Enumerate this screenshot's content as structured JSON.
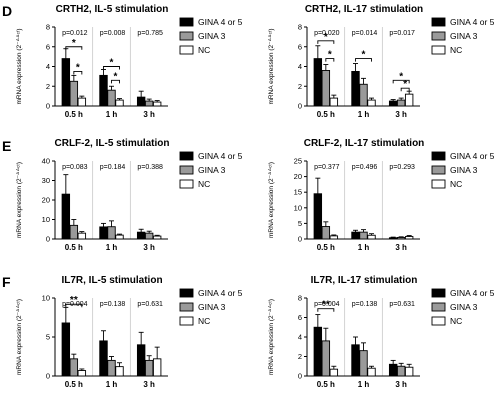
{
  "row_labels": [
    "D",
    "E",
    "F"
  ],
  "legend_entries": [
    "GINA 4 or 5",
    "GINA 3",
    "NC"
  ],
  "series_colors": [
    "#000000",
    "#9a9a9a",
    "#ffffff"
  ],
  "y_axis_label": "mRNA expression (2⁻ᐞᐞᶜᵗ)",
  "chart_data": [
    {
      "type": "bar",
      "title": "CRTH2, IL-5 stimulation",
      "categories": [
        "0.5 h",
        "1 h",
        "3 h"
      ],
      "pvalues": [
        "p=0.012",
        "p=0.008",
        "p=0.785"
      ],
      "ylim": [
        0,
        8
      ],
      "yticks": [
        0,
        2,
        4,
        6,
        8
      ],
      "series": [
        {
          "name": "GINA 4 or 5",
          "values": [
            4.8,
            3.1,
            0.9
          ],
          "errors": [
            1.0,
            0.6,
            0.6
          ]
        },
        {
          "name": "GINA 3",
          "values": [
            2.5,
            1.6,
            0.5
          ],
          "errors": [
            0.6,
            0.4,
            0.2
          ]
        },
        {
          "name": "NC",
          "values": [
            0.8,
            0.6,
            0.4
          ],
          "errors": [
            0.2,
            0.15,
            0.15
          ]
        }
      ],
      "significance": [
        {
          "cat": 0,
          "from": 0,
          "to": 2,
          "y": 6.0,
          "label": "*"
        },
        {
          "cat": 0,
          "from": 1,
          "to": 2,
          "y": 3.5,
          "label": "*"
        },
        {
          "cat": 1,
          "from": 0,
          "to": 2,
          "y": 4.0,
          "label": "*"
        },
        {
          "cat": 1,
          "from": 1,
          "to": 2,
          "y": 2.6,
          "label": "*"
        }
      ]
    },
    {
      "type": "bar",
      "title": "CRTH2, IL-17 stimulation",
      "categories": [
        "0.5 h",
        "1 h",
        "3 h"
      ],
      "pvalues": [
        "p=0.020",
        "p=0.014",
        "p=0.017"
      ],
      "ylim": [
        0,
        8
      ],
      "yticks": [
        0,
        2,
        4,
        6,
        8
      ],
      "series": [
        {
          "name": "GINA 4 or 5",
          "values": [
            4.8,
            3.5,
            0.5
          ],
          "errors": [
            1.3,
            0.8,
            0.15
          ]
        },
        {
          "name": "GINA 3",
          "values": [
            3.6,
            2.2,
            0.6
          ],
          "errors": [
            0.6,
            0.6,
            0.2
          ]
        },
        {
          "name": "NC",
          "values": [
            0.8,
            0.6,
            1.2
          ],
          "errors": [
            0.3,
            0.2,
            0.3
          ]
        }
      ],
      "significance": [
        {
          "cat": 0,
          "from": 0,
          "to": 2,
          "y": 6.6,
          "label": "*"
        },
        {
          "cat": 0,
          "from": 1,
          "to": 2,
          "y": 4.8,
          "label": "*"
        },
        {
          "cat": 1,
          "from": 0,
          "to": 2,
          "y": 4.8,
          "label": "*"
        },
        {
          "cat": 2,
          "from": 0,
          "to": 2,
          "y": 2.6,
          "label": "*"
        },
        {
          "cat": 2,
          "from": 1,
          "to": 2,
          "y": 1.8,
          "label": "*"
        }
      ]
    },
    {
      "type": "bar",
      "title": "CRLF-2, IL-5 stimulation",
      "categories": [
        "0.5 h",
        "1 h",
        "3 h"
      ],
      "pvalues": [
        "p=0.083",
        "p=0.184",
        "p=0.388"
      ],
      "ylim": [
        0,
        40
      ],
      "yticks": [
        0,
        10,
        20,
        30,
        40
      ],
      "series": [
        {
          "name": "GINA 4 or 5",
          "values": [
            23,
            6.2,
            3.5
          ],
          "errors": [
            10,
            1.8,
            1.5
          ]
        },
        {
          "name": "GINA 3",
          "values": [
            7,
            6.3,
            3.0
          ],
          "errors": [
            3.0,
            3.0,
            1.0
          ]
        },
        {
          "name": "NC",
          "values": [
            3.0,
            2.0,
            1.5
          ],
          "errors": [
            0.8,
            0.5,
            0.4
          ]
        }
      ],
      "significance": []
    },
    {
      "type": "bar",
      "title": "CRLF-2, IL-17 stimulation",
      "categories": [
        "0.5 h",
        "1 h",
        "3 h"
      ],
      "pvalues": [
        "p=0.377",
        "p=0.496",
        "p=0.293"
      ],
      "ylim": [
        0,
        25
      ],
      "yticks": [
        0,
        5,
        10,
        15,
        20,
        25
      ],
      "series": [
        {
          "name": "GINA 4 or 5",
          "values": [
            14.5,
            2.2,
            0.4
          ],
          "errors": [
            5.0,
            0.6,
            0.2
          ]
        },
        {
          "name": "GINA 3",
          "values": [
            4.0,
            2.2,
            0.5
          ],
          "errors": [
            1.5,
            0.8,
            0.2
          ]
        },
        {
          "name": "NC",
          "values": [
            1.0,
            1.2,
            0.8
          ],
          "errors": [
            0.3,
            0.5,
            0.3
          ]
        }
      ],
      "significance": []
    },
    {
      "type": "bar",
      "title": "IL7R, IL-5 stimulation",
      "categories": [
        "0.5 h",
        "1 h",
        "3 h"
      ],
      "pvalues": [
        "p=0.004",
        "p=0.138",
        "p=0.631"
      ],
      "ylim": [
        0,
        10
      ],
      "yticks": [
        0,
        5,
        10
      ],
      "series": [
        {
          "name": "GINA 4 or 5",
          "values": [
            6.8,
            4.5,
            4.0
          ],
          "errors": [
            2.0,
            1.3,
            1.6
          ]
        },
        {
          "name": "GINA 3",
          "values": [
            2.2,
            2.0,
            2.0
          ],
          "errors": [
            0.6,
            0.5,
            0.6
          ]
        },
        {
          "name": "NC",
          "values": [
            0.7,
            1.2,
            2.2
          ],
          "errors": [
            0.2,
            0.5,
            1.5
          ]
        }
      ],
      "significance": [
        {
          "cat": 0,
          "from": 0,
          "to": 2,
          "y": 9.2,
          "label": "**"
        }
      ]
    },
    {
      "type": "bar",
      "title": "IL7R, IL-17 stimulation",
      "categories": [
        "0.5 h",
        "1 h",
        "3 h"
      ],
      "pvalues": [
        "p=0.004",
        "p=0.138",
        "p=0.631"
      ],
      "ylim": [
        0,
        8
      ],
      "yticks": [
        0,
        2,
        4,
        6,
        8
      ],
      "series": [
        {
          "name": "GINA 4 or 5",
          "values": [
            5.0,
            3.2,
            1.2
          ],
          "errors": [
            1.3,
            0.8,
            0.4
          ]
        },
        {
          "name": "GINA 3",
          "values": [
            3.6,
            2.6,
            1.0
          ],
          "errors": [
            1.3,
            0.8,
            0.3
          ]
        },
        {
          "name": "NC",
          "values": [
            0.7,
            0.8,
            0.9
          ],
          "errors": [
            0.3,
            0.2,
            0.3
          ]
        }
      ],
      "significance": [
        {
          "cat": 0,
          "from": 0,
          "to": 2,
          "y": 6.9,
          "label": "**"
        }
      ]
    }
  ]
}
